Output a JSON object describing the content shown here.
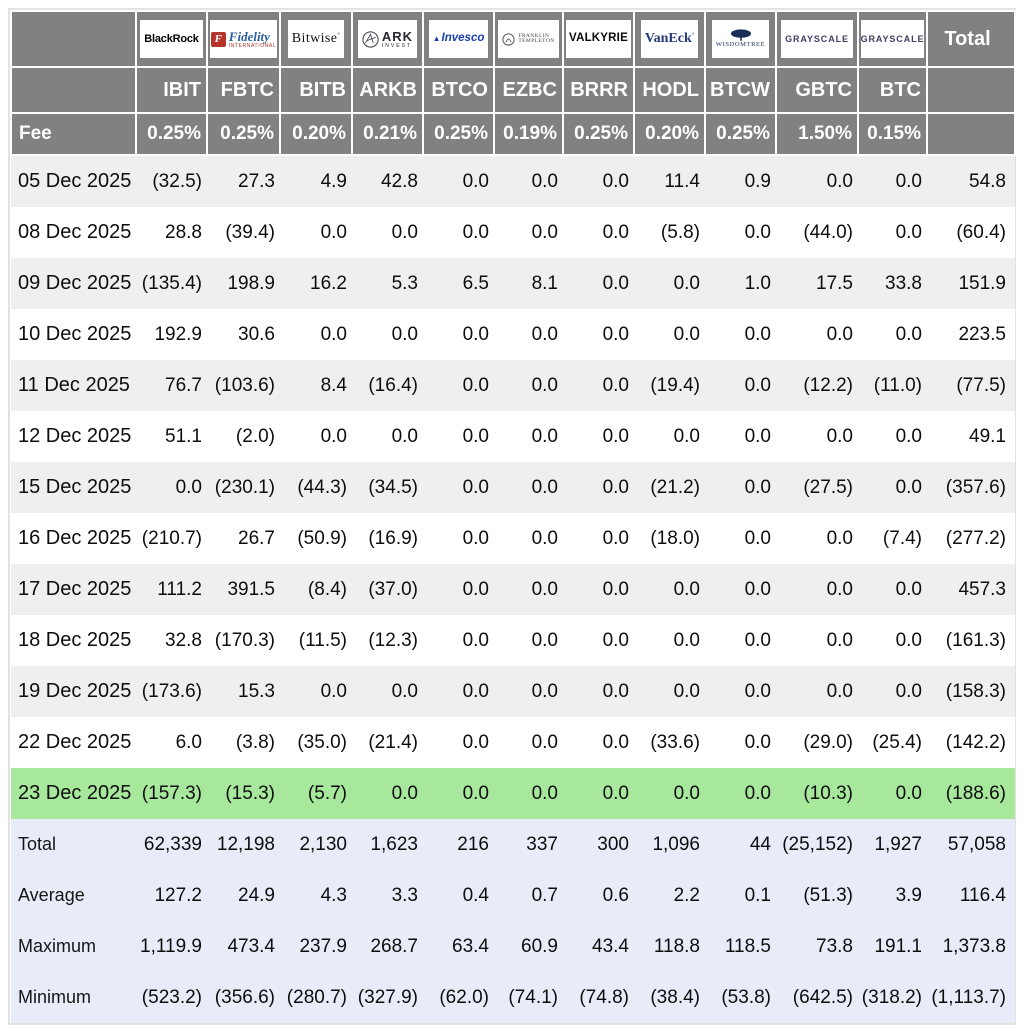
{
  "chart_data": {
    "type": "table",
    "header": {
      "fee_label": "Fee",
      "total_label": "Total",
      "providers": [
        {
          "name": "BlackRock",
          "ticker": "IBIT",
          "fee": "0.25%",
          "logo": "blackrock",
          "logo_text": "BlackRock"
        },
        {
          "name": "Fidelity",
          "ticker": "FBTC",
          "fee": "0.25%",
          "logo": "fidelity",
          "logo_text": "Fidelity",
          "logo_sub": "INTERNATIONAL",
          "logo_icon_letter": "F"
        },
        {
          "name": "Bitwise",
          "ticker": "BITB",
          "fee": "0.20%",
          "logo": "bitwise",
          "logo_text": "Bitwise"
        },
        {
          "name": "ARK Invest",
          "ticker": "ARKB",
          "fee": "0.21%",
          "logo": "ark",
          "logo_text": "ARK",
          "logo_sub": "INVEST"
        },
        {
          "name": "Invesco",
          "ticker": "BTCO",
          "fee": "0.25%",
          "logo": "invesco",
          "logo_text": "Invesco"
        },
        {
          "name": "Franklin Templeton",
          "ticker": "EZBC",
          "fee": "0.19%",
          "logo": "franklin",
          "logo_text": "FRANKLIN",
          "logo_sub": "TEMPLETON"
        },
        {
          "name": "Valkyrie",
          "ticker": "BRRR",
          "fee": "0.25%",
          "logo": "valkyrie",
          "logo_text": "VALKYRIE"
        },
        {
          "name": "VanEck",
          "ticker": "HODL",
          "fee": "0.20%",
          "logo": "vaneck",
          "logo_text": "VanEck"
        },
        {
          "name": "WisdomTree",
          "ticker": "BTCW",
          "fee": "0.25%",
          "logo": "wisdomtree",
          "logo_text": "WISDOMTREE"
        },
        {
          "name": "Grayscale",
          "ticker": "GBTC",
          "fee": "1.50%",
          "logo": "grayscale",
          "logo_text": "GRAYSCALE"
        },
        {
          "name": "Grayscale",
          "ticker": "BTC",
          "fee": "0.15%",
          "logo": "grayscale",
          "logo_text": "GRAYSCALE"
        }
      ]
    },
    "rows": [
      {
        "date": "05 Dec 2025",
        "highlight": false,
        "values": [
          "(32.5)",
          "27.3",
          "4.9",
          "42.8",
          "0.0",
          "0.0",
          "0.0",
          "11.4",
          "0.9",
          "0.0",
          "0.0"
        ],
        "total": "54.8"
      },
      {
        "date": "08 Dec 2025",
        "highlight": false,
        "values": [
          "28.8",
          "(39.4)",
          "0.0",
          "0.0",
          "0.0",
          "0.0",
          "0.0",
          "(5.8)",
          "0.0",
          "(44.0)",
          "0.0"
        ],
        "total": "(60.4)"
      },
      {
        "date": "09 Dec 2025",
        "highlight": false,
        "values": [
          "(135.4)",
          "198.9",
          "16.2",
          "5.3",
          "6.5",
          "8.1",
          "0.0",
          "0.0",
          "1.0",
          "17.5",
          "33.8"
        ],
        "total": "151.9"
      },
      {
        "date": "10 Dec 2025",
        "highlight": false,
        "values": [
          "192.9",
          "30.6",
          "0.0",
          "0.0",
          "0.0",
          "0.0",
          "0.0",
          "0.0",
          "0.0",
          "0.0",
          "0.0"
        ],
        "total": "223.5"
      },
      {
        "date": "11 Dec 2025",
        "highlight": false,
        "values": [
          "76.7",
          "(103.6)",
          "8.4",
          "(16.4)",
          "0.0",
          "0.0",
          "0.0",
          "(19.4)",
          "0.0",
          "(12.2)",
          "(11.0)"
        ],
        "total": "(77.5)"
      },
      {
        "date": "12 Dec 2025",
        "highlight": false,
        "values": [
          "51.1",
          "(2.0)",
          "0.0",
          "0.0",
          "0.0",
          "0.0",
          "0.0",
          "0.0",
          "0.0",
          "0.0",
          "0.0"
        ],
        "total": "49.1"
      },
      {
        "date": "15 Dec 2025",
        "highlight": false,
        "values": [
          "0.0",
          "(230.1)",
          "(44.3)",
          "(34.5)",
          "0.0",
          "0.0",
          "0.0",
          "(21.2)",
          "0.0",
          "(27.5)",
          "0.0"
        ],
        "total": "(357.6)"
      },
      {
        "date": "16 Dec 2025",
        "highlight": false,
        "values": [
          "(210.7)",
          "26.7",
          "(50.9)",
          "(16.9)",
          "0.0",
          "0.0",
          "0.0",
          "(18.0)",
          "0.0",
          "0.0",
          "(7.4)"
        ],
        "total": "(277.2)"
      },
      {
        "date": "17 Dec 2025",
        "highlight": false,
        "values": [
          "111.2",
          "391.5",
          "(8.4)",
          "(37.0)",
          "0.0",
          "0.0",
          "0.0",
          "0.0",
          "0.0",
          "0.0",
          "0.0"
        ],
        "total": "457.3"
      },
      {
        "date": "18 Dec 2025",
        "highlight": false,
        "values": [
          "32.8",
          "(170.3)",
          "(11.5)",
          "(12.3)",
          "0.0",
          "0.0",
          "0.0",
          "0.0",
          "0.0",
          "0.0",
          "0.0"
        ],
        "total": "(161.3)"
      },
      {
        "date": "19 Dec 2025",
        "highlight": false,
        "values": [
          "(173.6)",
          "15.3",
          "0.0",
          "0.0",
          "0.0",
          "0.0",
          "0.0",
          "0.0",
          "0.0",
          "0.0",
          "0.0"
        ],
        "total": "(158.3)"
      },
      {
        "date": "22 Dec 2025",
        "highlight": false,
        "values": [
          "6.0",
          "(3.8)",
          "(35.0)",
          "(21.4)",
          "0.0",
          "0.0",
          "0.0",
          "(33.6)",
          "0.0",
          "(29.0)",
          "(25.4)"
        ],
        "total": "(142.2)"
      },
      {
        "date": "23 Dec 2025",
        "highlight": true,
        "values": [
          "(157.3)",
          "(15.3)",
          "(5.7)",
          "0.0",
          "0.0",
          "0.0",
          "0.0",
          "0.0",
          "0.0",
          "(10.3)",
          "0.0"
        ],
        "total": "(188.6)"
      }
    ],
    "summary": [
      {
        "label": "Total",
        "values": [
          "62,339",
          "12,198",
          "2,130",
          "1,623",
          "216",
          "337",
          "300",
          "1,096",
          "44",
          "(25,152)",
          "1,927"
        ],
        "total": "57,058"
      },
      {
        "label": "Average",
        "values": [
          "127.2",
          "24.9",
          "4.3",
          "3.3",
          "0.4",
          "0.7",
          "0.6",
          "2.2",
          "0.1",
          "(51.3)",
          "3.9"
        ],
        "total": "116.4"
      },
      {
        "label": "Maximum",
        "values": [
          "1,119.9",
          "473.4",
          "237.9",
          "268.7",
          "63.4",
          "60.9",
          "43.4",
          "118.8",
          "118.5",
          "73.8",
          "191.1"
        ],
        "total": "1,373.8"
      },
      {
        "label": "Minimum",
        "values": [
          "(523.2)",
          "(356.6)",
          "(280.7)",
          "(327.9)",
          "(62.0)",
          "(74.1)",
          "(74.8)",
          "(38.4)",
          "(53.8)",
          "(642.5)",
          "(318.2)"
        ],
        "total": "(1,113.7)"
      }
    ],
    "colors": {
      "header_bg": "#818181",
      "negative_text": "#ff3b30",
      "highlight_row_bg": "#a8e89d",
      "summary_row_bg": "#e8ecf8",
      "stripe_row_bg": "#efefef"
    },
    "layout": {
      "grid": "header-white-gridlines, striped-body",
      "legend": "none"
    }
  }
}
